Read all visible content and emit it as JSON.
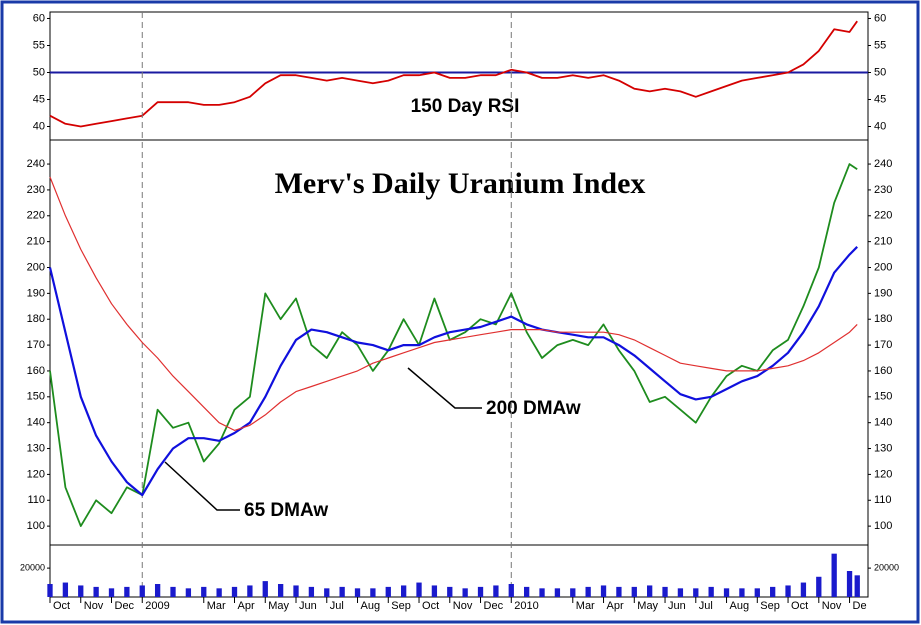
{
  "chart_data": [
    {
      "type": "line",
      "annotation": "150 Day RSI",
      "x": [
        0,
        0.5,
        1,
        1.5,
        2,
        2.5,
        3,
        3.5,
        4,
        4.5,
        5,
        5.5,
        6,
        6.5,
        7,
        7.5,
        8,
        8.5,
        9,
        9.5,
        10,
        10.5,
        11,
        11.5,
        12,
        12.5,
        13,
        13.5,
        14,
        14.5,
        15,
        15.5,
        16,
        16.5,
        17,
        17.5,
        18,
        18.5,
        19,
        19.5,
        20,
        20.5,
        21,
        21.5,
        22,
        22.5,
        23,
        23.5,
        24,
        24.5,
        25,
        25.5,
        26,
        26.25
      ],
      "values": [
        42,
        40.5,
        40,
        40.5,
        41,
        41.5,
        42,
        44.5,
        44.5,
        44.5,
        44,
        44,
        44.5,
        45.5,
        48,
        49.5,
        49.5,
        49,
        48.5,
        49,
        48.5,
        48,
        48.5,
        49.5,
        49.5,
        50,
        49,
        49,
        49.5,
        49.5,
        50.5,
        50,
        49,
        49,
        49.5,
        49,
        49.5,
        48.5,
        47,
        46.5,
        47,
        46.5,
        45.5,
        46.5,
        47.5,
        48.5,
        49,
        49.5,
        50,
        51.5,
        54,
        58,
        57.5,
        59.5
      ],
      "color": "#d40000",
      "hline": 50,
      "hline_color": "#1a1aa0",
      "xlim": [
        0,
        26.6
      ],
      "ylim": [
        37.5,
        61.2
      ],
      "yticks": [
        40,
        45,
        50,
        55,
        60
      ]
    },
    {
      "type": "line",
      "title": "Merv's Daily Uranium Index",
      "x": [
        0,
        0.5,
        1,
        1.5,
        2,
        2.5,
        3,
        3.5,
        4,
        4.5,
        5,
        5.5,
        6,
        6.5,
        7,
        7.5,
        8,
        8.5,
        9,
        9.5,
        10,
        10.5,
        11,
        11.5,
        12,
        12.5,
        13,
        13.5,
        14,
        14.5,
        15,
        15.5,
        16,
        16.5,
        17,
        17.5,
        18,
        18.5,
        19,
        19.5,
        20,
        20.5,
        21,
        21.5,
        22,
        22.5,
        23,
        23.5,
        24,
        24.5,
        25,
        25.5,
        26,
        26.25
      ],
      "series": [
        {
          "color": "#1e8c1e",
          "values": [
            160,
            115,
            100,
            110,
            105,
            115,
            112,
            145,
            138,
            140,
            125,
            132,
            145,
            150,
            190,
            180,
            188,
            170,
            165,
            175,
            170,
            160,
            168,
            180,
            170,
            188,
            172,
            175,
            180,
            178,
            190,
            175,
            165,
            170,
            172,
            170,
            178,
            168,
            160,
            148,
            150,
            145,
            140,
            150,
            158,
            162,
            160,
            168,
            172,
            185,
            200,
            225,
            240,
            238
          ]
        },
        {
          "name": "65 DMAw",
          "color": "#1010dd",
          "values": [
            200,
            175,
            150,
            135,
            125,
            117,
            112,
            122,
            130,
            134,
            134,
            133,
            136,
            140,
            150,
            162,
            172,
            176,
            175,
            173,
            171,
            170,
            168,
            170,
            170,
            173,
            175,
            176,
            177,
            179,
            181,
            178,
            176,
            175,
            174,
            173,
            173,
            170,
            166,
            161,
            156,
            151,
            149,
            150,
            153,
            156,
            158,
            162,
            167,
            175,
            185,
            198,
            205,
            208
          ]
        },
        {
          "name": "200 DMAw",
          "color": "#e03030",
          "values": [
            235,
            220,
            207,
            196,
            186,
            178,
            171,
            165,
            158,
            152,
            146,
            140,
            137,
            139,
            143,
            148,
            152,
            154,
            156,
            158,
            160,
            163,
            165,
            167,
            169,
            171,
            172,
            173,
            174,
            175,
            176,
            176,
            176,
            175,
            175,
            175,
            175,
            174,
            172,
            169,
            166,
            163,
            162,
            161,
            160,
            160,
            160,
            161,
            162,
            164,
            167,
            171,
            175,
            178
          ]
        }
      ],
      "xlim": [
        0,
        26.6
      ],
      "ylim": [
        92.7,
        249.3
      ],
      "yticks": [
        100,
        110,
        120,
        130,
        140,
        150,
        160,
        170,
        180,
        190,
        200,
        210,
        220,
        230,
        240
      ],
      "year_lines": [
        3,
        15
      ]
    },
    {
      "type": "bar",
      "x": [
        0,
        0.5,
        1,
        1.5,
        2,
        2.5,
        3,
        3.5,
        4,
        4.5,
        5,
        5.5,
        6,
        6.5,
        7,
        7.5,
        8,
        8.5,
        9,
        9.5,
        10,
        10.5,
        11,
        11.5,
        12,
        12.5,
        13,
        13.5,
        14,
        14.5,
        15,
        15.5,
        16,
        16.5,
        17,
        17.5,
        18,
        18.5,
        19,
        19.5,
        20,
        20.5,
        21,
        21.5,
        22,
        22.5,
        23,
        23.5,
        24,
        24.5,
        25,
        25.5,
        26,
        26.25
      ],
      "values": [
        9000,
        10000,
        8000,
        7000,
        6000,
        7000,
        8000,
        9000,
        7000,
        6000,
        7000,
        6000,
        7000,
        8000,
        11000,
        9000,
        8000,
        7000,
        6000,
        7000,
        6000,
        6000,
        7000,
        8000,
        10000,
        8000,
        7000,
        6000,
        7000,
        8000,
        9000,
        7000,
        6000,
        6000,
        6000,
        7000,
        8000,
        7000,
        7000,
        8000,
        7000,
        6000,
        6000,
        7000,
        6000,
        6000,
        6000,
        7000,
        8000,
        10000,
        14000,
        30000,
        18000,
        15000
      ],
      "color": "#1a1acc",
      "xlim": [
        0,
        26.6
      ],
      "ylim": [
        0,
        36000
      ],
      "yticks": [
        20000
      ],
      "xticks": [
        {
          "value": 0,
          "label": "Oct"
        },
        {
          "value": 1,
          "label": "Nov"
        },
        {
          "value": 2,
          "label": "Dec"
        },
        {
          "value": 3,
          "label": "2009"
        },
        {
          "value": 5,
          "label": "Mar"
        },
        {
          "value": 6,
          "label": "Apr"
        },
        {
          "value": 7,
          "label": "May"
        },
        {
          "value": 8,
          "label": "Jun"
        },
        {
          "value": 9,
          "label": "Jul"
        },
        {
          "value": 10,
          "label": "Aug"
        },
        {
          "value": 11,
          "label": "Sep"
        },
        {
          "value": 12,
          "label": "Oct"
        },
        {
          "value": 13,
          "label": "Nov"
        },
        {
          "value": 14,
          "label": "Dec"
        },
        {
          "value": 15,
          "label": "2010"
        },
        {
          "value": 17,
          "label": "Mar"
        },
        {
          "value": 18,
          "label": "Apr"
        },
        {
          "value": 19,
          "label": "May"
        },
        {
          "value": 20,
          "label": "Jun"
        },
        {
          "value": 21,
          "label": "Jul"
        },
        {
          "value": 22,
          "label": "Aug"
        },
        {
          "value": 23,
          "label": "Sep"
        },
        {
          "value": 24,
          "label": "Oct"
        },
        {
          "value": 25,
          "label": "Nov"
        },
        {
          "value": 26,
          "label": "De"
        }
      ]
    }
  ]
}
